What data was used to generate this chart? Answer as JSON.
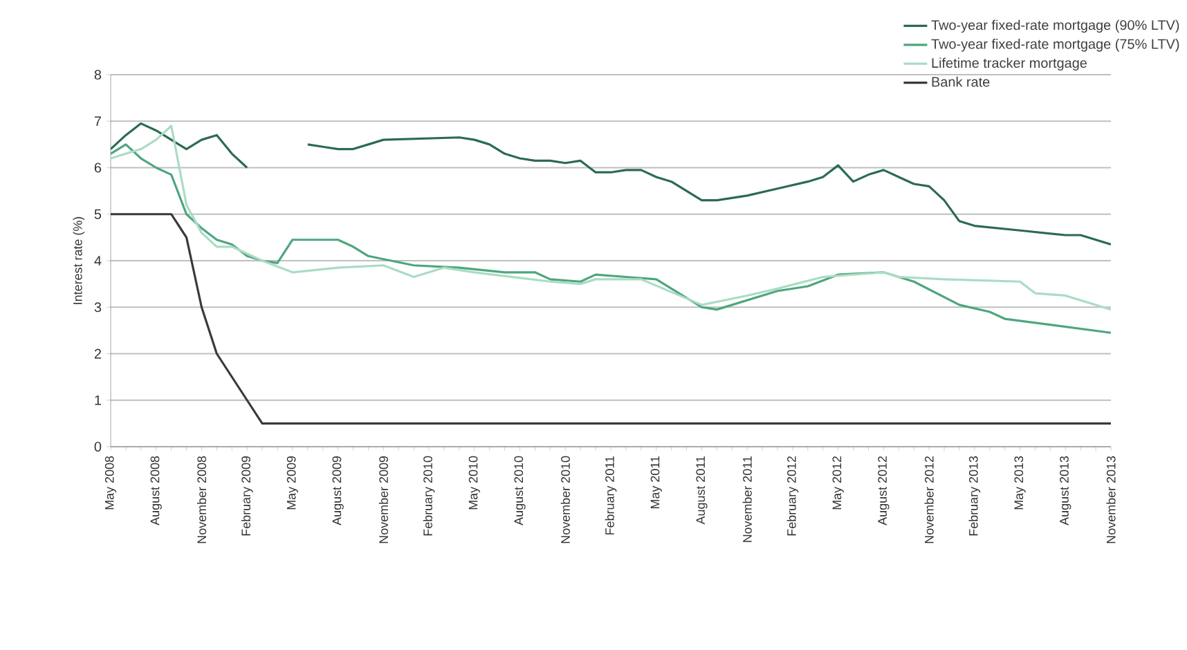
{
  "chart_data": {
    "type": "line",
    "ylabel": "Interest rate (%)",
    "ylim": [
      0,
      8
    ],
    "yticks": [
      0,
      1,
      2,
      3,
      4,
      5,
      6,
      7,
      8
    ],
    "grid": "y",
    "legend": "top right",
    "line_style": "solid",
    "xlim": [
      "2008-05",
      "2013-11"
    ],
    "xticks": [
      {
        "value": "2008-05",
        "label": "May 2008"
      },
      {
        "value": "2008-06",
        "label": null
      },
      {
        "value": "2008-07",
        "label": null
      },
      {
        "value": "2008-08",
        "label": "August 2008"
      },
      {
        "value": "2008-09",
        "label": null
      },
      {
        "value": "2008-10",
        "label": null
      },
      {
        "value": "2008-11",
        "label": "November 2008"
      },
      {
        "value": "2008-12",
        "label": null
      },
      {
        "value": "2009-01",
        "label": null
      },
      {
        "value": "2009-02",
        "label": "February 2009"
      },
      {
        "value": "2009-03",
        "label": null
      },
      {
        "value": "2009-04",
        "label": null
      },
      {
        "value": "2009-05",
        "label": "May 2009"
      },
      {
        "value": "2009-06",
        "label": null
      },
      {
        "value": "2009-07",
        "label": null
      },
      {
        "value": "2009-08",
        "label": "August 2009"
      },
      {
        "value": "2009-09",
        "label": null
      },
      {
        "value": "2009-10",
        "label": null
      },
      {
        "value": "2009-11",
        "label": "November 2009"
      },
      {
        "value": "2009-12",
        "label": null
      },
      {
        "value": "2010-01",
        "label": null
      },
      {
        "value": "2010-02",
        "label": "February 2010"
      },
      {
        "value": "2010-03",
        "label": null
      },
      {
        "value": "2010-04",
        "label": null
      },
      {
        "value": "2010-05",
        "label": "May 2010"
      },
      {
        "value": "2010-06",
        "label": null
      },
      {
        "value": "2010-07",
        "label": null
      },
      {
        "value": "2010-08",
        "label": "August 2010"
      },
      {
        "value": "2010-09",
        "label": null
      },
      {
        "value": "2010-10",
        "label": null
      },
      {
        "value": "2010-11",
        "label": "November 2010"
      },
      {
        "value": "2010-12",
        "label": null
      },
      {
        "value": "2011-01",
        "label": null
      },
      {
        "value": "2011-02",
        "label": "February 2011"
      },
      {
        "value": "2011-03",
        "label": null
      },
      {
        "value": "2011-04",
        "label": null
      },
      {
        "value": "2011-05",
        "label": "May 2011"
      },
      {
        "value": "2011-06",
        "label": null
      },
      {
        "value": "2011-07",
        "label": null
      },
      {
        "value": "2011-08",
        "label": "August 2011"
      },
      {
        "value": "2011-09",
        "label": null
      },
      {
        "value": "2011-10",
        "label": null
      },
      {
        "value": "2011-11",
        "label": "November 2011"
      },
      {
        "value": "2011-12",
        "label": null
      },
      {
        "value": "2012-01",
        "label": null
      },
      {
        "value": "2012-02",
        "label": "February 2012"
      },
      {
        "value": "2012-03",
        "label": null
      },
      {
        "value": "2012-04",
        "label": null
      },
      {
        "value": "2012-05",
        "label": "May 2012"
      },
      {
        "value": "2012-06",
        "label": null
      },
      {
        "value": "2012-07",
        "label": null
      },
      {
        "value": "2012-08",
        "label": "August 2012"
      },
      {
        "value": "2012-09",
        "label": null
      },
      {
        "value": "2012-10",
        "label": null
      },
      {
        "value": "2012-11",
        "label": "November 2012"
      },
      {
        "value": "2012-12",
        "label": null
      },
      {
        "value": "2013-01",
        "label": null
      },
      {
        "value": "2013-02",
        "label": "February 2013"
      },
      {
        "value": "2013-03",
        "label": null
      },
      {
        "value": "2013-04",
        "label": null
      },
      {
        "value": "2013-05",
        "label": "May 2013"
      },
      {
        "value": "2013-06",
        "label": null
      },
      {
        "value": "2013-07",
        "label": null
      },
      {
        "value": "2013-08",
        "label": "August 2013"
      },
      {
        "value": "2013-09",
        "label": null
      },
      {
        "value": "2013-10",
        "label": null
      },
      {
        "value": "2013-11",
        "label": "November 2013"
      }
    ],
    "series": [
      {
        "name": "Two-year fixed-rate mortgage (90% LTV)",
        "color": "#2b6b52",
        "x": [
          "2008-05",
          "2008-06",
          "2008-07",
          "2008-08",
          "2008-09",
          "2008-10",
          "2008-11",
          "2008-12",
          "2009-01",
          "2009-02",
          "2009-03",
          "2009-06",
          "2009-07",
          "2009-08",
          "2009-09",
          "2009-10",
          "2009-11",
          "2010-04",
          "2010-05",
          "2010-06",
          "2010-07",
          "2010-08",
          "2010-09",
          "2010-10",
          "2010-11",
          "2010-12",
          "2011-01",
          "2011-02",
          "2011-03",
          "2011-04",
          "2011-05",
          "2011-06",
          "2011-07",
          "2011-08",
          "2011-09",
          "2011-11",
          "2012-01",
          "2012-03",
          "2012-04",
          "2012-05",
          "2012-06",
          "2012-07",
          "2012-08",
          "2012-09",
          "2012-10",
          "2012-11",
          "2012-12",
          "2013-01",
          "2013-02",
          "2013-05",
          "2013-08",
          "2013-09",
          "2013-11"
        ],
        "values": [
          6.4,
          6.7,
          6.95,
          6.8,
          6.6,
          6.4,
          6.6,
          6.7,
          6.3,
          6.0,
          null,
          6.5,
          6.45,
          6.4,
          6.4,
          6.5,
          6.6,
          6.65,
          6.6,
          6.5,
          6.3,
          6.2,
          6.15,
          6.15,
          6.1,
          6.15,
          5.9,
          5.9,
          5.95,
          5.95,
          5.8,
          5.7,
          5.5,
          5.3,
          5.3,
          5.4,
          5.55,
          5.7,
          5.8,
          6.05,
          5.7,
          5.85,
          5.95,
          5.8,
          5.65,
          5.6,
          5.3,
          4.85,
          4.75,
          4.65,
          4.55,
          4.55,
          4.35
        ]
      },
      {
        "name": "Two-year fixed-rate mortgage (75% LTV)",
        "color": "#4da67e",
        "x": [
          "2008-05",
          "2008-06",
          "2008-07",
          "2008-08",
          "2008-09",
          "2008-10",
          "2008-11",
          "2008-12",
          "2009-01",
          "2009-02",
          "2009-03",
          "2009-04",
          "2009-05",
          "2009-06",
          "2009-07",
          "2009-08",
          "2009-09",
          "2009-10",
          "2010-01",
          "2010-04",
          "2010-07",
          "2010-09",
          "2010-10",
          "2010-12",
          "2011-01",
          "2011-03",
          "2011-05",
          "2011-06",
          "2011-07",
          "2011-08",
          "2011-09",
          "2012-01",
          "2012-03",
          "2012-05",
          "2012-08",
          "2012-10",
          "2013-01",
          "2013-03",
          "2013-04",
          "2013-11"
        ],
        "values": [
          6.3,
          6.5,
          6.2,
          6.0,
          5.85,
          5.0,
          4.7,
          4.45,
          4.35,
          4.1,
          4.0,
          3.95,
          4.45,
          4.45,
          4.45,
          4.45,
          4.3,
          4.1,
          3.9,
          3.85,
          3.75,
          3.75,
          3.6,
          3.55,
          3.7,
          3.65,
          3.6,
          3.4,
          3.2,
          3.0,
          2.95,
          3.35,
          3.45,
          3.7,
          3.75,
          3.55,
          3.05,
          2.9,
          2.75,
          2.45
        ]
      },
      {
        "name": "Lifetime tracker mortgage",
        "color": "#aadcc3",
        "x": [
          "2008-05",
          "2008-06",
          "2008-07",
          "2008-08",
          "2008-09",
          "2008-10",
          "2008-11",
          "2008-12",
          "2009-01",
          "2009-03",
          "2009-05",
          "2009-08",
          "2009-11",
          "2010-01",
          "2010-03",
          "2010-05",
          "2010-10",
          "2010-12",
          "2011-01",
          "2011-04",
          "2011-08",
          "2011-11",
          "2012-01",
          "2012-04",
          "2012-08",
          "2012-09",
          "2012-12",
          "2013-05",
          "2013-06",
          "2013-08",
          "2013-11"
        ],
        "values": [
          6.2,
          6.3,
          6.4,
          6.6,
          6.9,
          5.2,
          4.6,
          4.3,
          4.3,
          4.0,
          3.75,
          3.85,
          3.9,
          3.65,
          3.85,
          3.75,
          3.55,
          3.5,
          3.6,
          3.6,
          3.05,
          3.25,
          3.4,
          3.65,
          3.75,
          3.65,
          3.6,
          3.55,
          3.3,
          3.25,
          2.95
        ]
      },
      {
        "name": "Bank rate",
        "color": "#3a3a3a",
        "x": [
          "2008-05",
          "2008-09",
          "2008-10",
          "2008-11",
          "2008-12",
          "2009-01",
          "2009-02",
          "2009-03",
          "2013-11"
        ],
        "values": [
          5,
          5,
          4.5,
          3.0,
          2.0,
          1.5,
          1.0,
          0.5,
          0.5
        ]
      }
    ]
  }
}
